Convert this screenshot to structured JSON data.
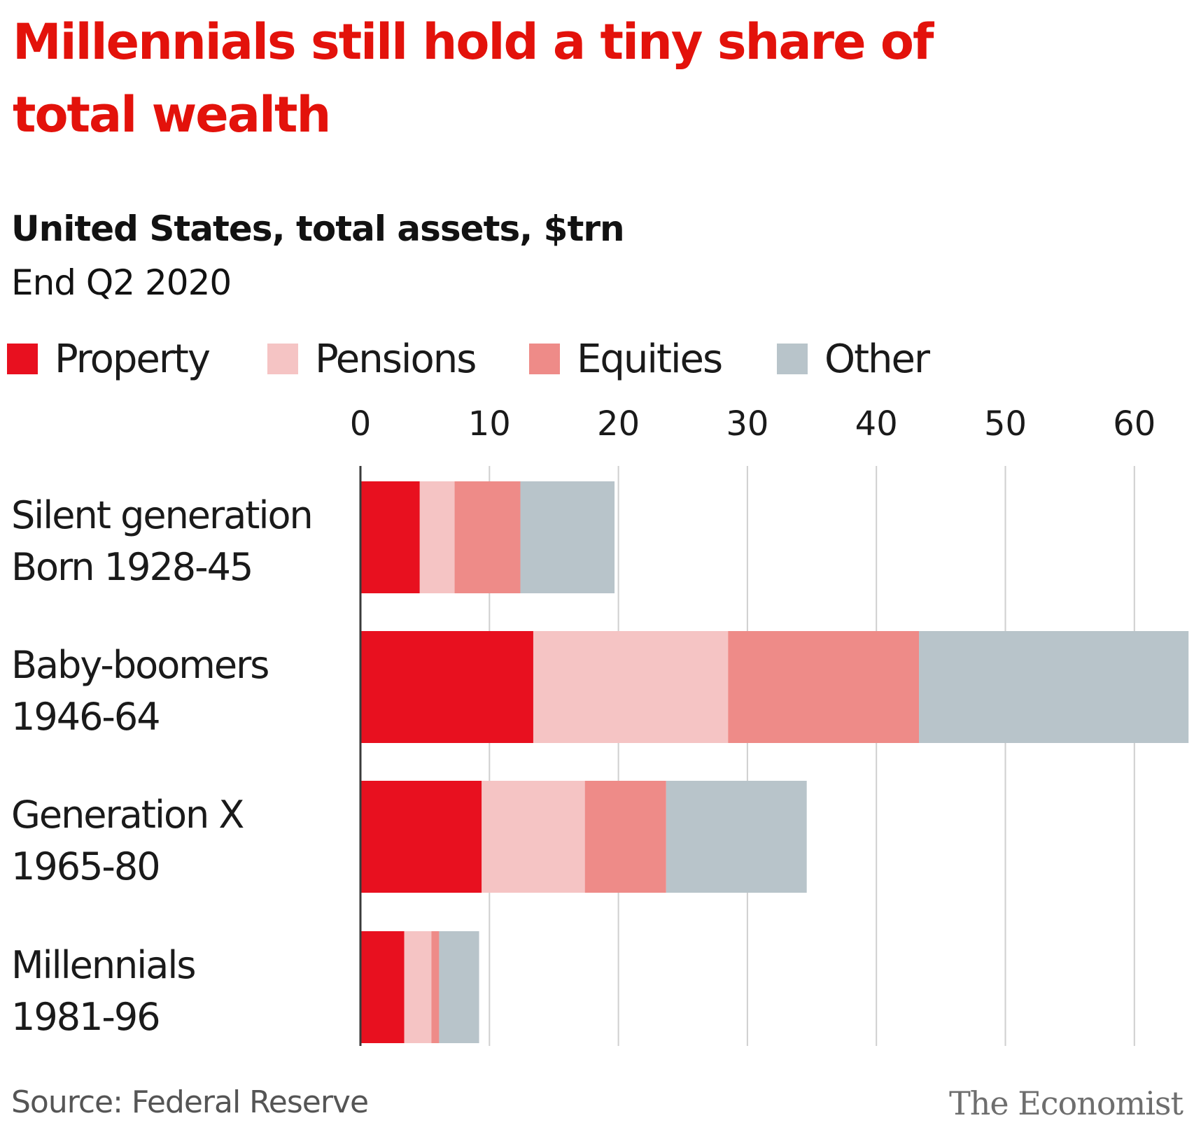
{
  "header": {
    "title": "Millennials still hold a tiny share of total wealth",
    "subtitle": "United States, total assets, $trn",
    "period": "End Q2 2020"
  },
  "footer": {
    "source": "Source: Federal Reserve",
    "brand": "The Economist"
  },
  "colors": {
    "title": "#e3120b",
    "property": "#e8101f",
    "pensions": "#f5c4c4",
    "equities": "#ee8b88",
    "other": "#b8c4ca",
    "grid": "#cfcfcf",
    "axis": "#3a3a3a"
  },
  "chart_data": {
    "type": "bar",
    "orientation": "horizontal",
    "stacked": true,
    "categories": [
      {
        "name": "Silent generation",
        "sub": "Born 1928-45"
      },
      {
        "name": "Baby-boomers",
        "sub": "1946-64"
      },
      {
        "name": "Generation X",
        "sub": "1965-80"
      },
      {
        "name": "Millennials",
        "sub": "1981-96"
      }
    ],
    "series": [
      {
        "name": "Property",
        "color": "#e8101f",
        "values": [
          4.6,
          13.4,
          9.4,
          3.4
        ]
      },
      {
        "name": "Pensions",
        "color": "#f5c4c4",
        "values": [
          2.7,
          15.1,
          8.0,
          2.1
        ]
      },
      {
        "name": "Equities",
        "color": "#ee8b88",
        "values": [
          5.1,
          14.8,
          6.3,
          0.6
        ]
      },
      {
        "name": "Other",
        "color": "#b8c4ca",
        "values": [
          7.3,
          20.9,
          10.9,
          3.1
        ]
      }
    ],
    "xlim": [
      0,
      64
    ],
    "xticks": [
      0,
      10,
      20,
      30,
      40,
      50,
      60
    ],
    "grid": true,
    "legend_position": "top"
  }
}
